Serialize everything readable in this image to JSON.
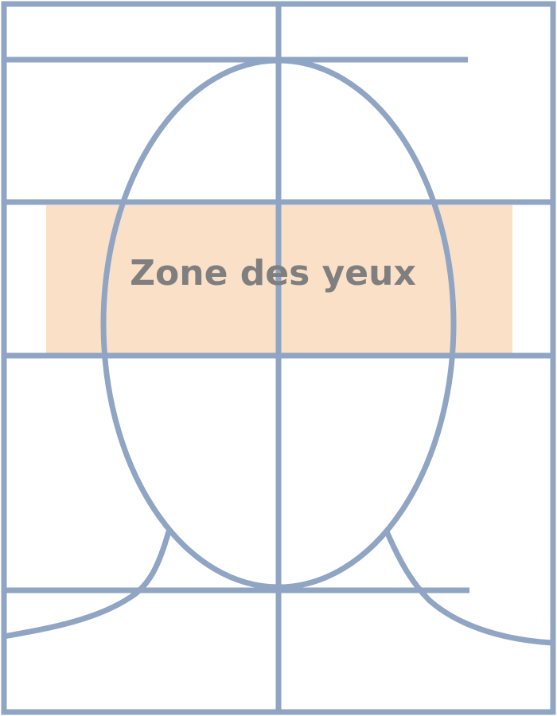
{
  "diagram": {
    "zone_label": "Zone des yeux",
    "colors": {
      "line": "#8fa5c3",
      "zone_fill": "#fbe0c8",
      "label": "#7f7f7f",
      "background": "#ffffff"
    }
  }
}
